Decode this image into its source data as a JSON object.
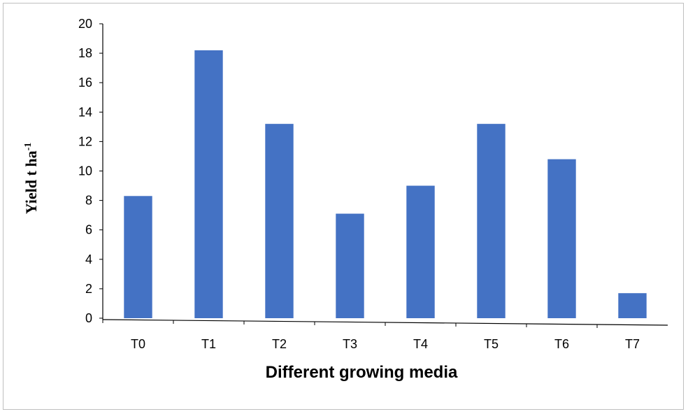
{
  "chart_data": {
    "type": "bar",
    "categories": [
      "T0",
      "T1",
      "T2",
      "T3",
      "T4",
      "T5",
      "T6",
      "T7"
    ],
    "values": [
      8.3,
      18.2,
      13.2,
      7.1,
      9.0,
      13.2,
      10.8,
      1.7
    ],
    "title": "",
    "xlabel": "Different growing media",
    "ylabel": "Yield t ha",
    "ylabel_superscript": "-1",
    "ylim": [
      0,
      20
    ],
    "yticks": [
      0,
      2,
      4,
      6,
      8,
      10,
      12,
      14,
      16,
      18,
      20
    ],
    "grid": false,
    "legend": "none",
    "bar_color": "#4472c4"
  }
}
